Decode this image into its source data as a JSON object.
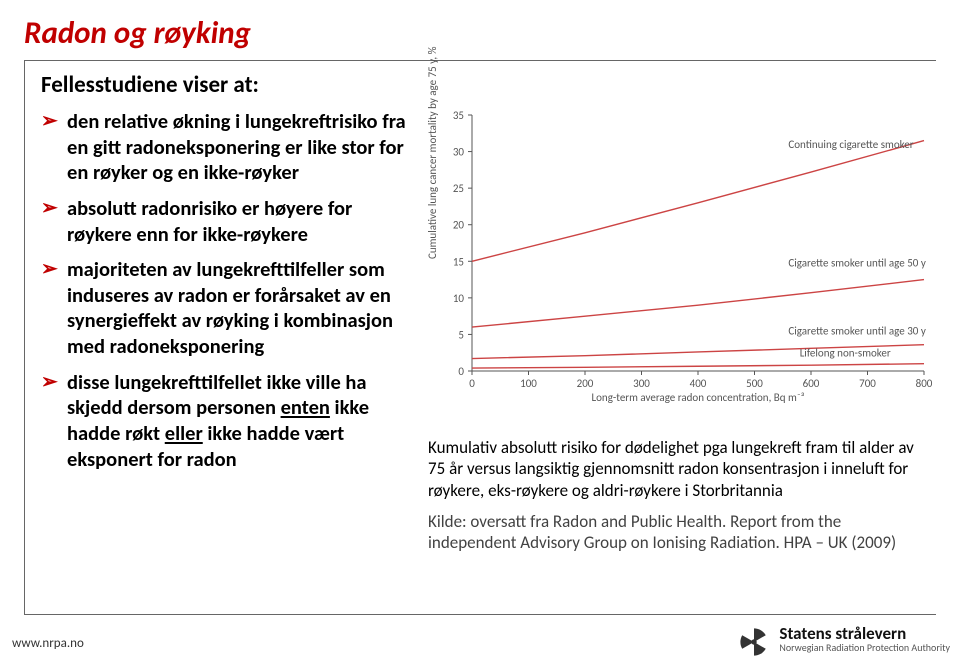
{
  "colors": {
    "title": "#c00000",
    "bullet": "#c00000",
    "text": "#000000",
    "frame": "#666666"
  },
  "title": "Radon og røyking",
  "subtitle": "Fellesstudiene viser at:",
  "bullets": [
    "den relative økning i lungekreftrisiko fra en gitt radoneksponering er like stor for en røyker og en ikke-røyker",
    "absolutt radonrisiko er høyere for røykere enn for ikke-røykere",
    "majoriteten av lungekrefttilfeller som induseres av radon er forårsaket av en synergieffekt av røyking i kombinasjon med radoneksponering",
    "disse lungekrefttilfellet ikke ville ha skjedd dersom personen <u>enten</u> ikke hadde røkt <u>eller</u> ikke hadde vært eksponert for radon"
  ],
  "chart": {
    "type": "line",
    "xlabel": "Long-term average radon concentration, Bq m⁻³",
    "ylabel": "Cumulative lung cancer mortality by age 75 y, %",
    "xlim": [
      0,
      800
    ],
    "xticks": [
      0,
      100,
      200,
      300,
      400,
      500,
      600,
      700,
      800
    ],
    "ylim": [
      0,
      35
    ],
    "yticks": [
      0,
      5,
      10,
      15,
      20,
      25,
      30,
      35
    ],
    "axis_color": "#555555",
    "line_color": "#cc4444",
    "line_width": 1.4,
    "label_fontsize": 11,
    "series": [
      {
        "label": "Continuing cigarette smoker",
        "points": [
          [
            0,
            15.0
          ],
          [
            200,
            18.9
          ],
          [
            400,
            23.0
          ],
          [
            600,
            27.2
          ],
          [
            800,
            31.5
          ]
        ],
        "label_xy": [
          560,
          30.5
        ]
      },
      {
        "label": "Cigarette smoker until age 50 y",
        "points": [
          [
            0,
            6.0
          ],
          [
            200,
            7.5
          ],
          [
            400,
            9.0
          ],
          [
            600,
            10.7
          ],
          [
            800,
            12.5
          ]
        ],
        "label_xy": [
          560,
          14.3
        ]
      },
      {
        "label": "Cigarette smoker until age 30 y",
        "points": [
          [
            0,
            1.7
          ],
          [
            200,
            2.1
          ],
          [
            400,
            2.6
          ],
          [
            600,
            3.1
          ],
          [
            800,
            3.6
          ]
        ],
        "label_xy": [
          560,
          5.0
        ]
      },
      {
        "label": "Lifelong non-smoker",
        "points": [
          [
            0,
            0.4
          ],
          [
            200,
            0.5
          ],
          [
            400,
            0.65
          ],
          [
            600,
            0.8
          ],
          [
            800,
            1.0
          ]
        ],
        "label_xy": [
          580,
          2.0
        ]
      }
    ]
  },
  "caption": {
    "p1": "Kumulativ absolutt risiko for dødelighet pga lungekreft fram til alder av 75 år  versus langsiktig gjennomsnitt radon konsentrasjon i inneluft for røykere, eks-røykere og aldri-røykere i Storbritannia",
    "p2": "Kilde: oversatt fra Radon and Public Health. Report from the independent Advisory Group on Ionising Radiation. HPA – UK (2009)"
  },
  "footer_url": "www.nrpa.no",
  "logo": {
    "line1": "Statens strålevern",
    "line2": "Norwegian Radiation Protection Authority",
    "mark_color": "#333333"
  }
}
